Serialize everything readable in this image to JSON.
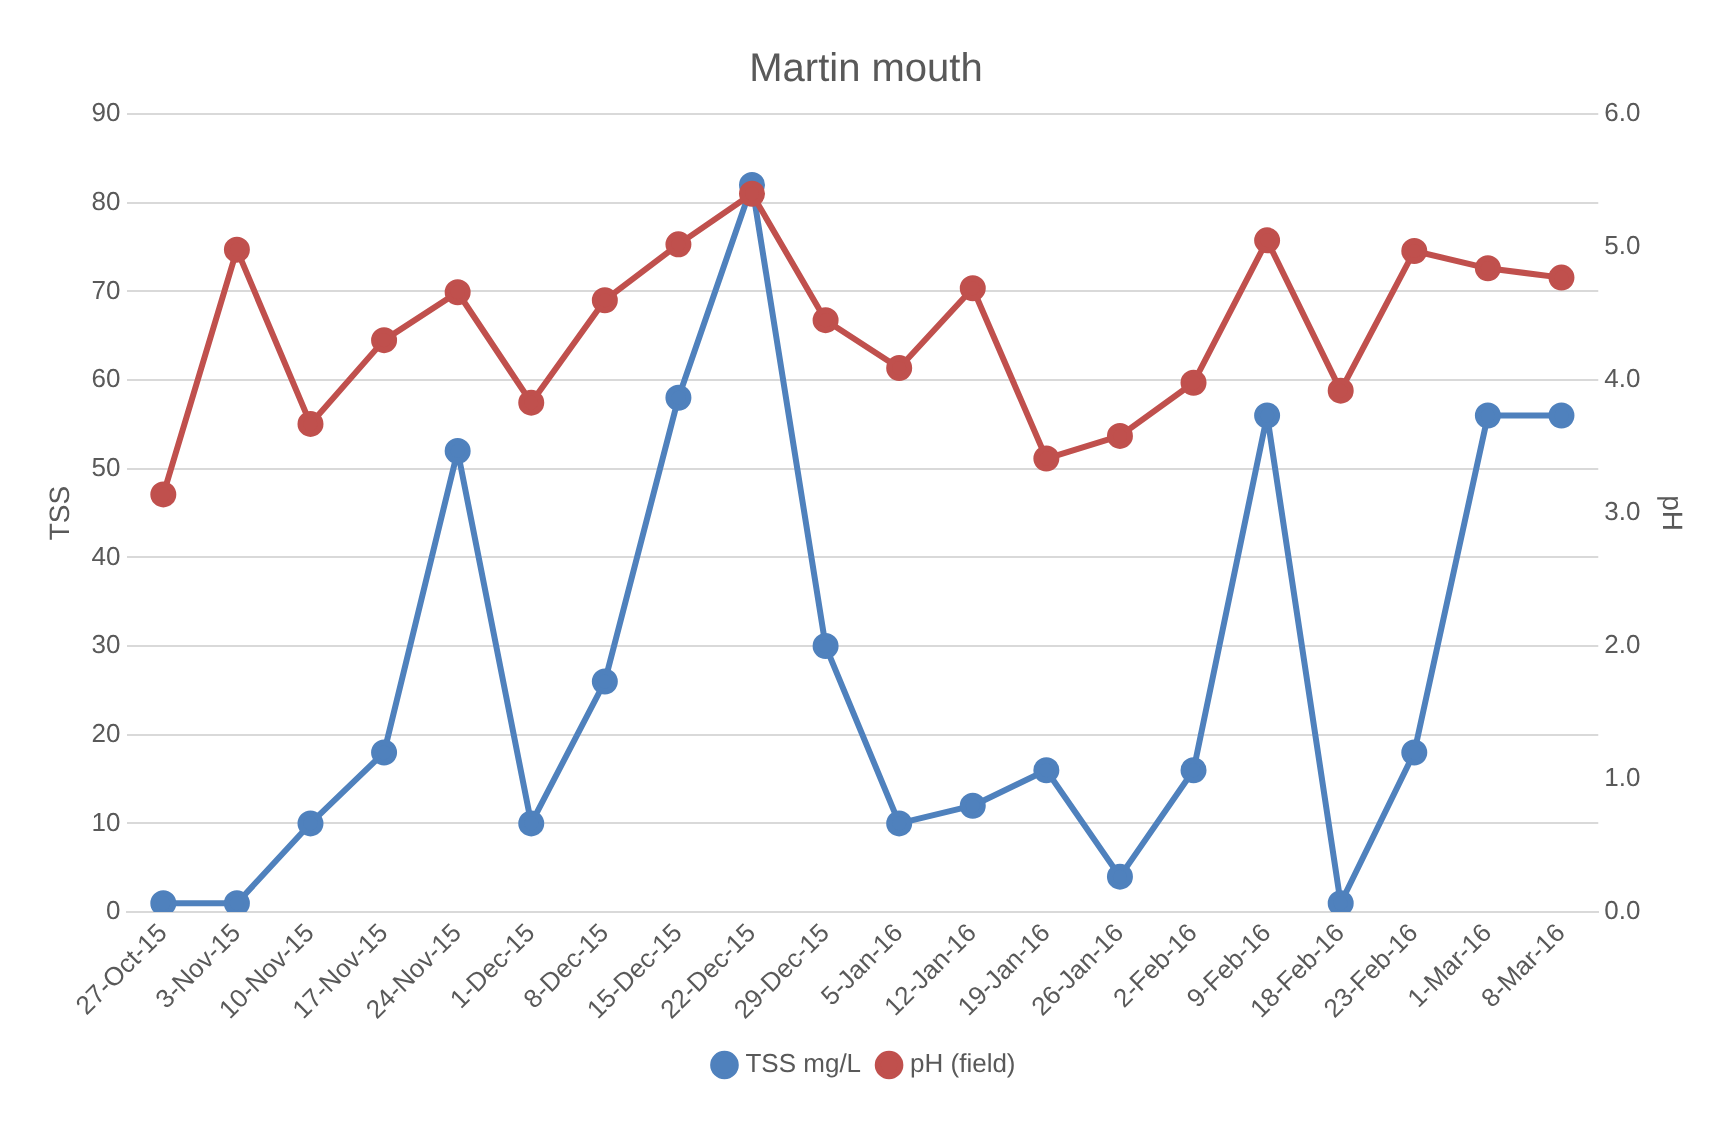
{
  "chart_data": {
    "type": "line",
    "title": "Martin mouth",
    "ylabel": "TSS",
    "y2label": "pH",
    "categories": [
      "27-Oct-15",
      "3-Nov-15",
      "10-Nov-15",
      "17-Nov-15",
      "24-Nov-15",
      "1-Dec-15",
      "8-Dec-15",
      "15-Dec-15",
      "22-Dec-15",
      "29-Dec-15",
      "5-Jan-16",
      "12-Jan-16",
      "19-Jan-16",
      "26-Jan-16",
      "2-Feb-16",
      "9-Feb-16",
      "18-Feb-16",
      "23-Feb-16",
      "1-Mar-16",
      "8-Mar-16"
    ],
    "series": [
      {
        "name": "TSS mg/L",
        "color": "#4f81bd",
        "values": [
          1,
          1,
          10,
          18,
          52,
          10,
          26,
          58,
          82,
          30,
          10,
          12,
          16,
          4,
          16,
          56,
          1,
          18,
          56,
          56
        ]
      },
      {
        "name": "pH (field)",
        "color": "#c0504d",
        "axis": "y2",
        "values": [
          3.14,
          4.98,
          3.67,
          4.3,
          4.66,
          3.83,
          4.6,
          5.02,
          5.4,
          4.45,
          4.09,
          4.69,
          3.41,
          3.58,
          3.98,
          5.05,
          3.92,
          4.97,
          4.84,
          4.77
        ]
      }
    ],
    "ylim": [
      0,
      90
    ],
    "yticks": [
      0,
      10,
      20,
      30,
      40,
      50,
      60,
      70,
      80,
      90
    ],
    "y2lim": [
      0,
      6
    ],
    "y2ticks": [
      {
        "value": 0,
        "label": "0.0"
      },
      {
        "value": 1,
        "label": "1.0"
      },
      {
        "value": 2,
        "label": "2.0"
      },
      {
        "value": 3,
        "label": "3.0"
      },
      {
        "value": 4,
        "label": "4.0"
      },
      {
        "value": 5,
        "label": "5.0"
      },
      {
        "value": 6,
        "label": "6.0"
      }
    ],
    "grid": "y",
    "legend": "bottom",
    "marker": "circle",
    "line_style": "solid"
  }
}
